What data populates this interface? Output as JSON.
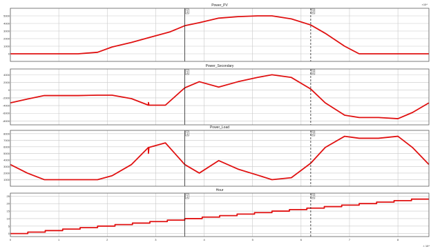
{
  "corner_label": "×10⁴",
  "cursors": [
    {
      "label": "1",
      "x": 3.6,
      "style": "solid"
    },
    {
      "label": "2",
      "x": 6.2,
      "style": "dashed"
    }
  ],
  "colors": {
    "line": "#e01010",
    "grid": "#c8c8c8",
    "border": "#5a5a5a",
    "cursor": "#222222"
  },
  "x_axis": {
    "min": 0,
    "max": 8.64,
    "ticks": [
      0,
      1,
      2,
      3,
      4,
      5,
      6,
      7,
      8
    ],
    "tick_labels": [
      "0",
      "1",
      "2",
      "3",
      "4",
      "5",
      "6",
      "7",
      "8"
    ],
    "exponent": "× 10⁴"
  },
  "chart_data": [
    {
      "type": "line",
      "title": "Power_PV",
      "ylim": [
        -1000,
        6000
      ],
      "yticks": [
        0,
        1000,
        2000,
        3000,
        4000,
        5000
      ],
      "ytick_labels": [
        "0",
        "1000",
        "2000",
        "3000",
        "4000",
        "5000"
      ],
      "grid": true,
      "series": [
        {
          "x": [
            0,
            0.7,
            1.4,
            1.8,
            2.1,
            2.5,
            2.9,
            3.3,
            3.6,
            3.9,
            4.3,
            4.7,
            5.1,
            5.4,
            5.8,
            6.2,
            6.5,
            6.9,
            7.2,
            7.6,
            8.0,
            8.64
          ],
          "y": [
            0,
            0,
            0,
            200,
            900,
            1500,
            2200,
            2900,
            3700,
            4100,
            4700,
            4900,
            5000,
            5000,
            4600,
            3800,
            2700,
            1000,
            0,
            0,
            0,
            0
          ]
        }
      ]
    },
    {
      "type": "line",
      "title": "Power_Secondary",
      "ylim": [
        -9000,
        5500
      ],
      "yticks": [
        -8000,
        -6000,
        -4000,
        -2000,
        0,
        2000,
        4000
      ],
      "ytick_labels": [
        "-8000",
        "-6000",
        "-4000",
        "-2000",
        "0",
        "2000",
        "4000"
      ],
      "grid": true,
      "series": [
        {
          "x": [
            0,
            0.35,
            0.7,
            1.4,
            1.8,
            2.1,
            2.5,
            2.85,
            2.85,
            2.86,
            3.2,
            3.6,
            3.9,
            4.3,
            4.7,
            5.1,
            5.4,
            5.8,
            6.2,
            6.5,
            6.9,
            7.2,
            7.6,
            8.0,
            8.3,
            8.64
          ],
          "y": [
            -3300,
            -2300,
            -1400,
            -1400,
            -1300,
            -1300,
            -2200,
            -3900,
            -3200,
            -3900,
            -3900,
            600,
            2200,
            800,
            2200,
            3300,
            4000,
            3300,
            300,
            -3300,
            -6500,
            -7100,
            -7100,
            -7400,
            -5800,
            -3300
          ]
        }
      ]
    },
    {
      "type": "line",
      "title": "Power_Load",
      "ylim": [
        0,
        8500
      ],
      "yticks": [
        1000,
        2000,
        3000,
        4000,
        5000,
        6000,
        7000,
        8000
      ],
      "ytick_labels": [
        "1000",
        "2000",
        "3000",
        "4000",
        "5000",
        "6000",
        "7000",
        "8000"
      ],
      "grid": true,
      "series": [
        {
          "x": [
            0,
            0.35,
            0.7,
            1.4,
            1.8,
            2.1,
            2.5,
            2.85,
            2.85,
            2.86,
            3.2,
            3.6,
            3.9,
            4.3,
            4.7,
            5.1,
            5.4,
            5.8,
            6.2,
            6.5,
            6.9,
            7.2,
            7.6,
            8.0,
            8.3,
            8.64
          ],
          "y": [
            3300,
            2000,
            1000,
            1000,
            1000,
            1600,
            3300,
            5900,
            5000,
            5900,
            6600,
            3300,
            2000,
            3900,
            2600,
            1700,
            1000,
            1300,
            3500,
            5900,
            7600,
            7300,
            7300,
            7600,
            5900,
            3300
          ]
        }
      ]
    },
    {
      "type": "line",
      "title": "Hour",
      "ylim": [
        -2,
        27
      ],
      "yticks": [
        0,
        5,
        10,
        15,
        20,
        25
      ],
      "ytick_labels": [
        "0",
        "5",
        "10",
        "15",
        "20",
        "25"
      ],
      "grid": true,
      "step": 3600,
      "series": [
        {
          "hours": [
            0,
            1,
            2,
            3,
            4,
            5,
            6,
            7,
            8,
            9,
            10,
            11,
            12,
            13,
            14,
            15,
            16,
            17,
            18,
            19,
            20,
            21,
            22,
            23
          ]
        }
      ]
    }
  ]
}
